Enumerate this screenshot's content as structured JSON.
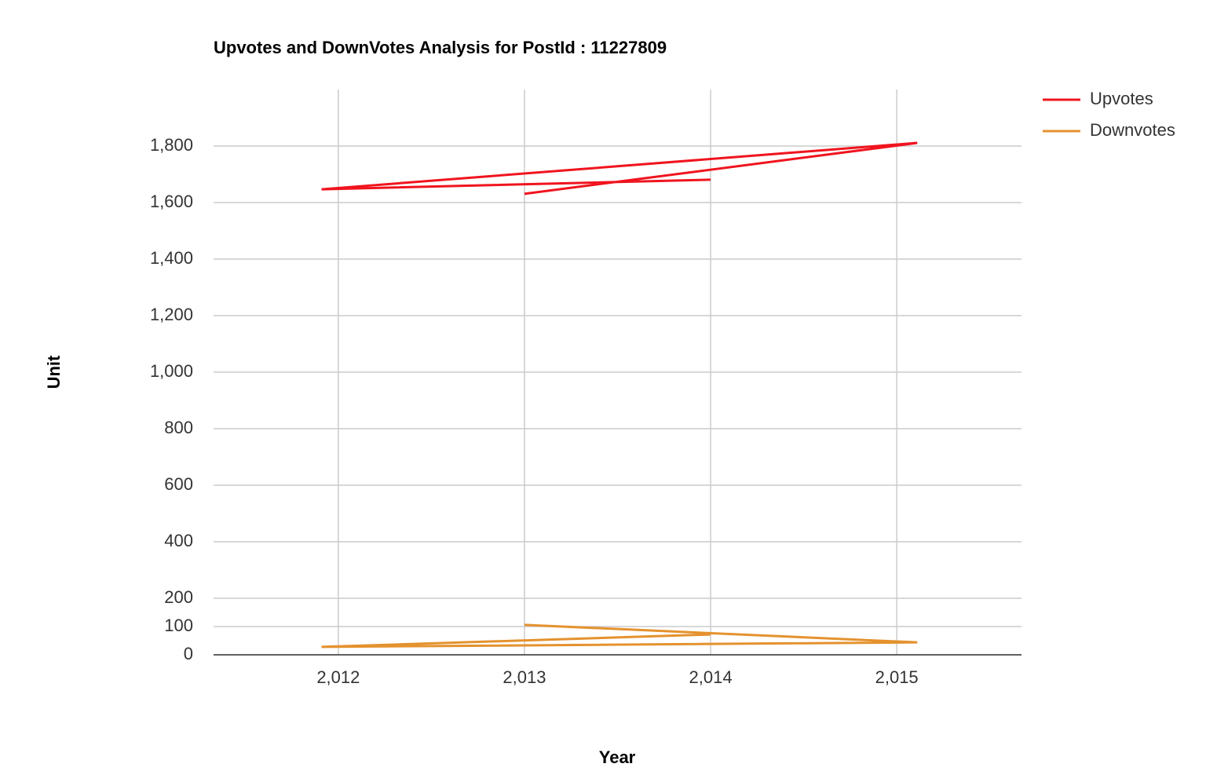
{
  "chart_data": {
    "type": "line",
    "title": "Upvotes and DownVotes Analysis for PostId : 11227809",
    "x_label": "Year",
    "y_label": "Unit",
    "series": [
      {
        "name": "Upvotes",
        "color": "#f0141e",
        "x": [
          2013,
          2015.11,
          2011.91,
          2014
        ],
        "values": [
          1631,
          1811,
          1647,
          1681
        ]
      },
      {
        "name": "Downvotes",
        "color": "#e4922e",
        "x": [
          2013,
          2015.11,
          2011.91,
          2014
        ],
        "values": [
          106,
          44,
          28,
          72
        ]
      }
    ],
    "xlim": [
      2011.33,
      2015.67
    ],
    "xticks": [
      {
        "value": 2012,
        "label": "2,012"
      },
      {
        "value": 2013,
        "label": "2,013"
      },
      {
        "value": 2014,
        "label": "2,014"
      },
      {
        "value": 2015,
        "label": "2,015"
      }
    ],
    "ylim": [
      0,
      2000
    ],
    "yticks": [
      0,
      100,
      200,
      400,
      600,
      800,
      {
        "value": 1000,
        "label": "1,000"
      },
      {
        "value": 1200,
        "label": "1,200"
      },
      {
        "value": 1400,
        "label": "1,400"
      },
      {
        "value": 1600,
        "label": "1,600"
      },
      {
        "value": 1800,
        "label": "1,800"
      }
    ],
    "grid": true,
    "legend": "right"
  }
}
